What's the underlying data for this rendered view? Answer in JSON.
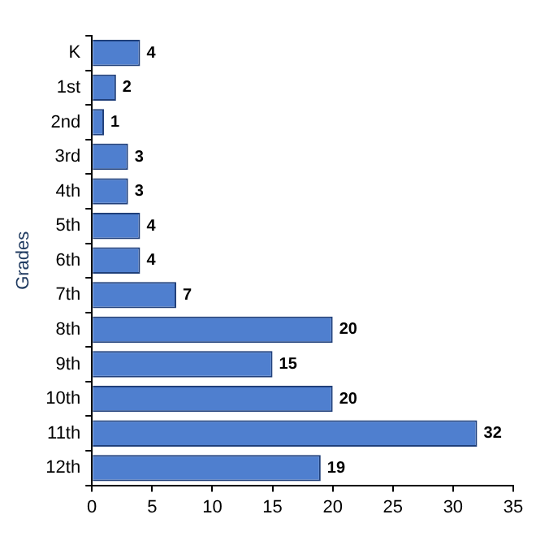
{
  "chart_data": {
    "type": "bar",
    "orientation": "horizontal",
    "ylabel": "Grades",
    "categories": [
      "K",
      "1st",
      "2nd",
      "3rd",
      "4th",
      "5th",
      "6th",
      "7th",
      "8th",
      "9th",
      "10th",
      "11th",
      "12th"
    ],
    "values": [
      4,
      2,
      1,
      3,
      3,
      4,
      4,
      7,
      20,
      15,
      20,
      32,
      19
    ],
    "color": "#4f7fcf",
    "xlim": [
      0,
      35
    ],
    "xticks": [
      0,
      5,
      10,
      15,
      20,
      25,
      30,
      35
    ],
    "grid": false,
    "legend": false,
    "data_labels": true
  }
}
